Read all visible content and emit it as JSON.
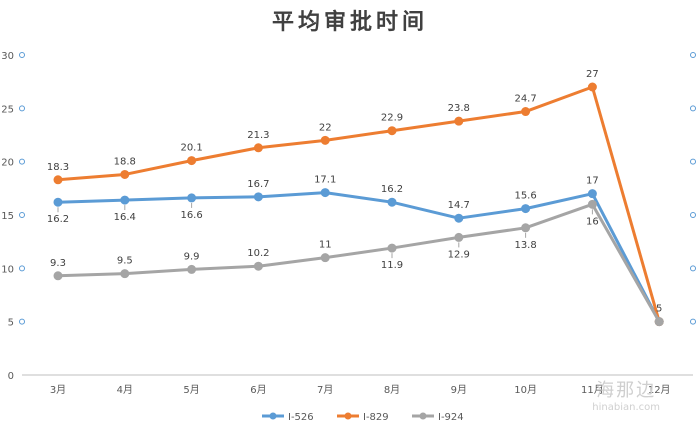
{
  "chart_data": {
    "type": "line",
    "title": "平均审批时间",
    "categories": [
      "3月",
      "4月",
      "5月",
      "6月",
      "7月",
      "8月",
      "9月",
      "10月",
      "11月",
      "12月"
    ],
    "ylim": [
      0,
      30
    ],
    "yticks": [
      0,
      5,
      10,
      15,
      20,
      25,
      30
    ],
    "grid": false,
    "legend_position": "bottom",
    "series": [
      {
        "name": "I-526",
        "color": "#5B9BD5",
        "values": [
          16.2,
          16.4,
          16.6,
          16.7,
          17.1,
          16.2,
          14.7,
          15.6,
          17,
          5
        ],
        "labels": [
          "16.2",
          "16.4",
          "16.6",
          "16.7",
          "17.1",
          "16.2",
          "14.7",
          "15.6",
          "17",
          ""
        ]
      },
      {
        "name": "I-829",
        "color": "#ED7D31",
        "values": [
          18.3,
          18.8,
          20.1,
          21.3,
          22,
          22.9,
          23.8,
          24.7,
          27,
          5
        ],
        "labels": [
          "18.3",
          "18.8",
          "20.1",
          "21.3",
          "22",
          "22.9",
          "23.8",
          "24.7",
          "27",
          "5"
        ]
      },
      {
        "name": "I-924",
        "color": "#A5A5A5",
        "values": [
          9.3,
          9.5,
          9.9,
          10.2,
          11,
          11.9,
          12.9,
          13.8,
          16,
          5
        ],
        "labels": [
          "9.3",
          "9.5",
          "9.9",
          "10.2",
          "11",
          "11.9",
          "12.9",
          "13.8",
          "16",
          ""
        ]
      }
    ]
  },
  "watermark": {
    "main": "海那边",
    "sub": "hinabian.com"
  }
}
